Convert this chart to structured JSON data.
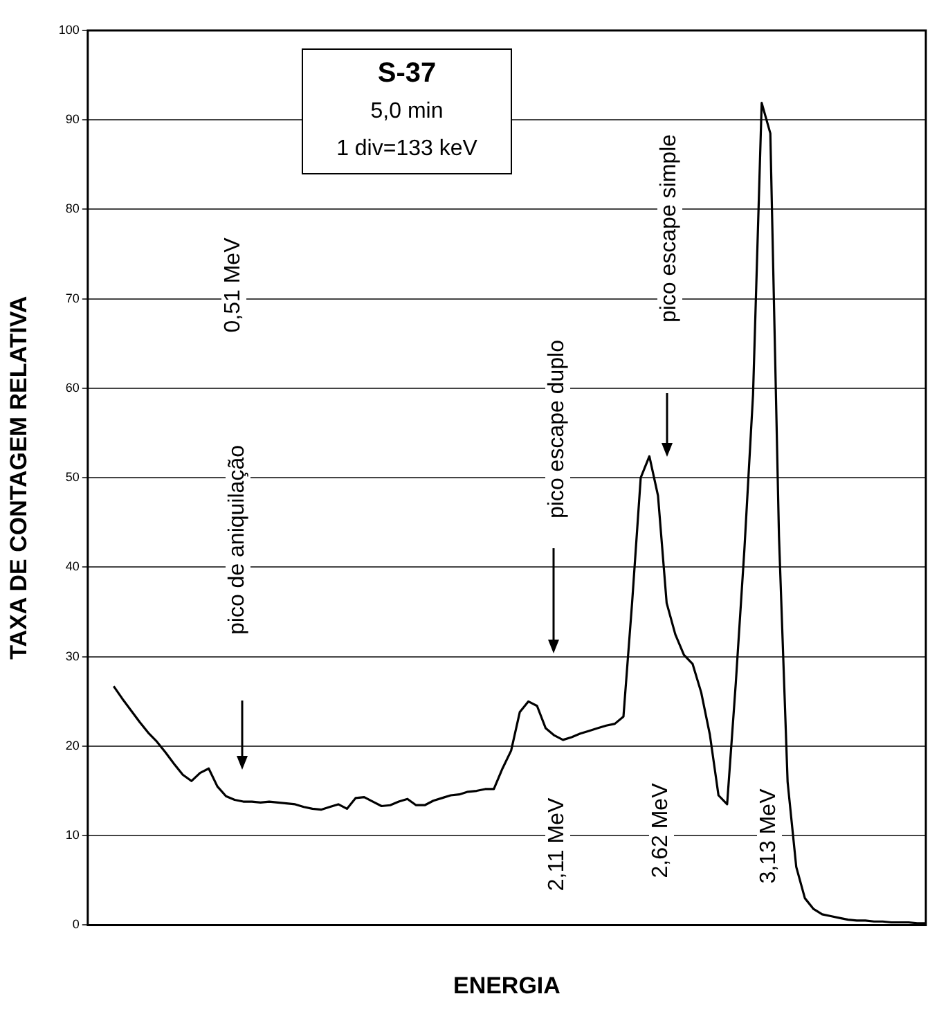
{
  "chart_data": {
    "type": "line",
    "title": "S-37",
    "subtitle": "5,0 min",
    "xlabel": "ENERGIA",
    "ylabel": "TAXA DE CONTAGEM RELATIVA",
    "annotations": [
      "0,51 MeV",
      "pico de aniquilação",
      "pico escape duplo",
      "2,11 MeV",
      "pico escape simple",
      "2,62 MeV",
      "3,13 MeV",
      "1 div=133 keV"
    ],
    "categories": [
      null,
      null,
      null,
      null,
      null,
      null,
      null,
      null,
      null,
      null,
      null,
      null,
      null,
      null,
      null,
      null,
      null,
      null,
      null,
      null,
      null,
      null,
      null,
      null,
      null,
      null,
      null,
      null,
      null,
      null,
      null,
      null,
      null,
      null,
      null,
      null,
      null,
      null,
      null,
      null,
      null,
      null,
      null,
      null,
      null,
      null,
      null,
      null,
      null,
      null,
      null,
      null,
      null,
      null,
      null,
      null,
      null,
      null,
      null,
      null,
      null,
      null,
      null,
      null,
      null,
      null,
      null,
      null,
      null,
      null,
      null,
      null,
      null,
      null,
      null,
      null,
      null,
      null,
      null,
      null,
      null,
      null,
      null,
      null,
      null,
      null,
      null,
      null,
      null,
      null,
      null,
      null,
      null,
      null,
      null,
      null,
      null,
      null
    ],
    "series": [
      {
        "color": "#000000",
        "values": [
          null,
          null,
          null,
          26.7,
          25.3,
          24.0,
          22.7,
          21.5,
          20.5,
          19.3,
          18.0,
          16.8,
          16.1,
          17.0,
          17.5,
          15.5,
          14.4,
          14.0,
          13.8,
          13.8,
          13.7,
          13.8,
          13.7,
          13.6,
          13.5,
          13.2,
          13.0,
          12.9,
          13.2,
          13.5,
          13.0,
          14.2,
          14.3,
          13.8,
          13.3,
          13.4,
          13.8,
          14.1,
          13.4,
          13.4,
          13.9,
          14.2,
          14.5,
          14.6,
          14.9,
          15.0,
          15.2,
          15.2,
          17.5,
          19.5,
          23.8,
          25.0,
          24.5,
          22.0,
          21.2,
          20.7,
          21.0,
          21.4,
          21.7,
          22.0,
          22.3,
          22.5,
          23.3,
          36.0,
          50.0,
          52.4,
          48.0,
          36.0,
          32.5,
          30.2,
          29.2,
          26.0,
          21.3,
          14.5,
          13.5,
          27.0,
          42.0,
          59.3,
          91.9,
          88.5,
          43.5,
          16.0,
          6.5,
          3.0,
          1.8,
          1.2,
          1.0,
          0.8,
          0.6,
          0.5,
          0.5,
          0.4,
          0.4,
          0.3,
          0.3,
          0.3,
          0.2,
          0.2
        ]
      }
    ],
    "ylim": [
      0,
      100
    ],
    "yticks": [
      0,
      10,
      20,
      30,
      40,
      50,
      60,
      70,
      80,
      90,
      100
    ],
    "grid": "y",
    "legend": false,
    "marker": "none",
    "line_style": "solid"
  }
}
